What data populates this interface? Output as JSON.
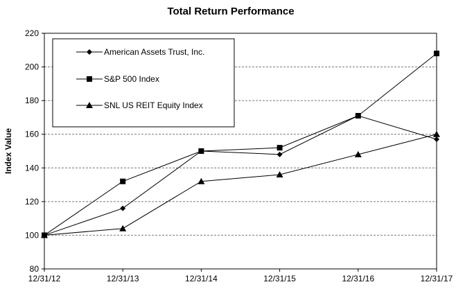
{
  "chart_data": {
    "type": "line",
    "title": "Total Return Performance",
    "xlabel": "",
    "ylabel": "Index Value",
    "categories": [
      "12/31/12",
      "12/31/13",
      "12/31/14",
      "12/31/15",
      "12/31/16",
      "12/31/17"
    ],
    "ylim": [
      80,
      220
    ],
    "yticks": [
      80,
      100,
      120,
      140,
      160,
      180,
      200,
      220
    ],
    "grid": "horizontal dashed",
    "legend_position": "top-left",
    "series": [
      {
        "name": "American Assets Trust, Inc.",
        "marker": "diamond",
        "values": [
          100,
          116,
          150,
          148,
          171,
          157
        ]
      },
      {
        "name": "S&P 500 Index",
        "marker": "square",
        "values": [
          100,
          132,
          150,
          152,
          171,
          208
        ]
      },
      {
        "name": "SNL US REIT Equity Index",
        "marker": "triangle",
        "values": [
          100,
          104,
          132,
          136,
          148,
          160
        ]
      }
    ]
  }
}
